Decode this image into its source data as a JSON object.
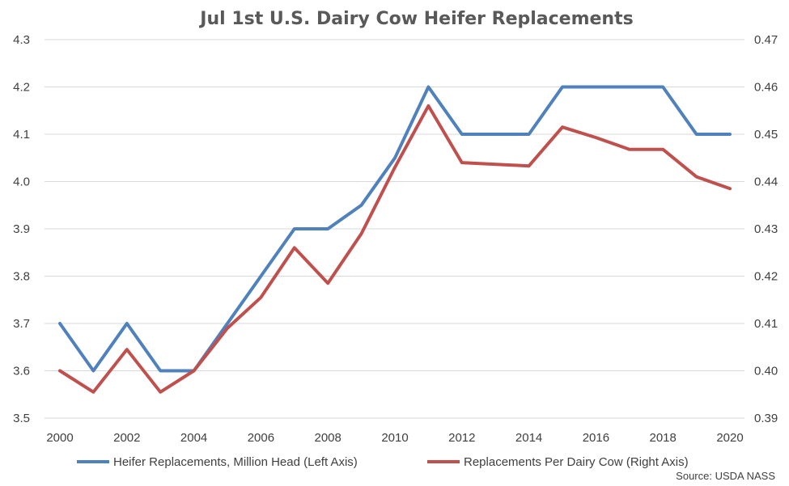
{
  "chart_data": {
    "type": "line",
    "title": "Jul 1st U.S. Dairy Cow Heifer Replacements",
    "x": [
      2000,
      2001,
      2002,
      2003,
      2004,
      2005,
      2006,
      2007,
      2008,
      2009,
      2010,
      2011,
      2012,
      2014,
      2015,
      2016,
      2017,
      2018,
      2019,
      2020
    ],
    "x_tick_labels": [
      "2000",
      "2002",
      "2004",
      "2006",
      "2008",
      "2010",
      "2012",
      "2014",
      "2016",
      "2018",
      "2020"
    ],
    "y_left": {
      "min": 3.5,
      "max": 4.3,
      "step": 0.1,
      "ticks": [
        "3.5",
        "3.6",
        "3.7",
        "3.8",
        "3.9",
        "4.0",
        "4.1",
        "4.2",
        "4.3"
      ]
    },
    "y_right": {
      "min": 0.39,
      "max": 0.47,
      "step": 0.01,
      "ticks": [
        "0.39",
        "0.40",
        "0.41",
        "0.42",
        "0.43",
        "0.44",
        "0.45",
        "0.46",
        "0.47"
      ]
    },
    "grid": true,
    "legend_position": "bottom",
    "series": [
      {
        "name": "Heifer Replacements, Million Head (Left Axis)",
        "axis": "left",
        "color": "#4f81bd",
        "values": [
          3.7,
          3.6,
          3.7,
          3.6,
          3.6,
          3.7,
          3.8,
          3.9,
          3.9,
          3.95,
          4.05,
          4.2,
          4.1,
          4.1,
          4.2,
          4.2,
          4.2,
          4.2,
          4.1,
          4.1
        ]
      },
      {
        "name": "Replacements Per Dairy Cow (Right Axis)",
        "axis": "right",
        "color": "#c0504d",
        "values": [
          0.4,
          0.3955,
          0.4045,
          0.3955,
          0.4,
          0.409,
          0.4155,
          0.426,
          0.4185,
          0.429,
          0.443,
          0.456,
          0.444,
          0.4433,
          0.4515,
          0.4493,
          0.4468,
          0.4468,
          0.441,
          0.4385
        ]
      }
    ],
    "source": "Source: USDA NASS"
  }
}
